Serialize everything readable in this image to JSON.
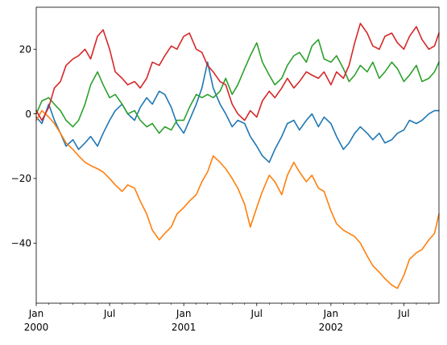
{
  "chart_data": {
    "type": "line",
    "title": "",
    "xlabel": "",
    "ylabel": "",
    "x_range": [
      "2000-01-01",
      "2002-09-26"
    ],
    "ylim": [
      -58.6,
      33.0
    ],
    "grid": false,
    "legend": "none",
    "x_ticks": [
      {
        "date": "2000-01-01",
        "line1": "Jan",
        "line2": "2000"
      },
      {
        "date": "2000-07-01",
        "line1": "Jul",
        "line2": ""
      },
      {
        "date": "2001-01-01",
        "line1": "Jan",
        "line2": "2001"
      },
      {
        "date": "2001-07-01",
        "line1": "Jul",
        "line2": ""
      },
      {
        "date": "2002-01-01",
        "line1": "Jan",
        "line2": "2002"
      },
      {
        "date": "2002-07-01",
        "line1": "Jul",
        "line2": ""
      }
    ],
    "x_minor_ticks": [
      "2000-02-01",
      "2000-03-01",
      "2000-04-01",
      "2000-05-01",
      "2000-06-01",
      "2000-08-01",
      "2000-09-01",
      "2000-10-01",
      "2000-11-01",
      "2000-12-01",
      "2001-02-01",
      "2001-03-01",
      "2001-04-01",
      "2001-05-01",
      "2001-06-01",
      "2001-08-01",
      "2001-09-01",
      "2001-10-01",
      "2001-11-01",
      "2001-12-01",
      "2002-02-01",
      "2002-03-01",
      "2002-04-01",
      "2002-05-01",
      "2002-06-01",
      "2002-08-01",
      "2002-09-01"
    ],
    "y_ticks": [
      {
        "value": 20,
        "label": "20"
      },
      {
        "value": 0,
        "label": "0"
      },
      {
        "value": -20,
        "label": "−20"
      },
      {
        "value": -40,
        "label": "−40"
      }
    ],
    "series": [
      {
        "color": "#1f77b4",
        "points": [
          [
            "2000-01-01",
            -1
          ],
          [
            "2000-01-15",
            -3
          ],
          [
            "2000-02-01",
            3
          ],
          [
            "2000-02-15",
            -2
          ],
          [
            "2000-03-01",
            -6
          ],
          [
            "2000-03-15",
            -10
          ],
          [
            "2000-04-01",
            -8
          ],
          [
            "2000-04-15",
            -11
          ],
          [
            "2000-05-01",
            -9
          ],
          [
            "2000-05-15",
            -7
          ],
          [
            "2000-06-01",
            -10
          ],
          [
            "2000-06-15",
            -6
          ],
          [
            "2000-07-01",
            -2
          ],
          [
            "2000-07-15",
            1
          ],
          [
            "2000-08-01",
            3
          ],
          [
            "2000-08-15",
            0
          ],
          [
            "2000-09-01",
            -2
          ],
          [
            "2000-09-15",
            2
          ],
          [
            "2000-10-01",
            5
          ],
          [
            "2000-10-15",
            3
          ],
          [
            "2000-11-01",
            7
          ],
          [
            "2000-11-15",
            6
          ],
          [
            "2000-12-01",
            2
          ],
          [
            "2000-12-15",
            -3
          ],
          [
            "2001-01-01",
            -6
          ],
          [
            "2001-01-15",
            -2
          ],
          [
            "2001-02-01",
            3
          ],
          [
            "2001-02-15",
            8
          ],
          [
            "2001-03-01",
            16
          ],
          [
            "2001-03-15",
            8
          ],
          [
            "2001-04-01",
            3
          ],
          [
            "2001-04-15",
            0
          ],
          [
            "2001-05-01",
            -4
          ],
          [
            "2001-05-15",
            -2
          ],
          [
            "2001-06-01",
            -3
          ],
          [
            "2001-06-15",
            -7
          ],
          [
            "2001-07-01",
            -10
          ],
          [
            "2001-07-15",
            -13
          ],
          [
            "2001-08-01",
            -15
          ],
          [
            "2001-08-15",
            -11
          ],
          [
            "2001-09-01",
            -7
          ],
          [
            "2001-09-15",
            -3
          ],
          [
            "2001-10-01",
            -2
          ],
          [
            "2001-10-15",
            -5
          ],
          [
            "2001-11-01",
            -2
          ],
          [
            "2001-11-15",
            0
          ],
          [
            "2001-12-01",
            -4
          ],
          [
            "2001-12-15",
            -1
          ],
          [
            "2002-01-01",
            -3
          ],
          [
            "2002-01-15",
            -7
          ],
          [
            "2002-02-01",
            -11
          ],
          [
            "2002-02-15",
            -9
          ],
          [
            "2002-03-01",
            -6
          ],
          [
            "2002-03-15",
            -4
          ],
          [
            "2002-04-01",
            -6
          ],
          [
            "2002-04-15",
            -8
          ],
          [
            "2002-05-01",
            -6
          ],
          [
            "2002-05-15",
            -9
          ],
          [
            "2002-06-01",
            -8
          ],
          [
            "2002-06-15",
            -6
          ],
          [
            "2002-07-01",
            -5
          ],
          [
            "2002-07-15",
            -2
          ],
          [
            "2002-08-01",
            -3
          ],
          [
            "2002-08-15",
            -2
          ],
          [
            "2002-09-01",
            0
          ],
          [
            "2002-09-15",
            1
          ],
          [
            "2002-09-26",
            1
          ]
        ]
      },
      {
        "color": "#ff7f0e",
        "points": [
          [
            "2000-01-01",
            -2
          ],
          [
            "2000-01-15",
            1
          ],
          [
            "2000-02-01",
            -1
          ],
          [
            "2000-02-15",
            -3
          ],
          [
            "2000-03-01",
            -6
          ],
          [
            "2000-03-15",
            -9
          ],
          [
            "2000-04-01",
            -11
          ],
          [
            "2000-04-15",
            -13
          ],
          [
            "2000-05-01",
            -15
          ],
          [
            "2000-05-15",
            -16
          ],
          [
            "2000-06-01",
            -17
          ],
          [
            "2000-06-15",
            -18
          ],
          [
            "2000-07-01",
            -20
          ],
          [
            "2000-07-15",
            -22
          ],
          [
            "2000-08-01",
            -24
          ],
          [
            "2000-08-15",
            -22
          ],
          [
            "2000-09-01",
            -23
          ],
          [
            "2000-09-15",
            -27
          ],
          [
            "2000-10-01",
            -31
          ],
          [
            "2000-10-15",
            -36
          ],
          [
            "2000-11-01",
            -39
          ],
          [
            "2000-11-15",
            -37
          ],
          [
            "2000-12-01",
            -35
          ],
          [
            "2000-12-15",
            -31
          ],
          [
            "2001-01-01",
            -29
          ],
          [
            "2001-01-15",
            -27
          ],
          [
            "2001-02-01",
            -25
          ],
          [
            "2001-02-15",
            -21
          ],
          [
            "2001-03-01",
            -18
          ],
          [
            "2001-03-15",
            -13
          ],
          [
            "2001-04-01",
            -15
          ],
          [
            "2001-04-15",
            -17
          ],
          [
            "2001-05-01",
            -20
          ],
          [
            "2001-05-15",
            -23
          ],
          [
            "2001-06-01",
            -28
          ],
          [
            "2001-06-15",
            -35
          ],
          [
            "2001-07-01",
            -29
          ],
          [
            "2001-07-15",
            -24
          ],
          [
            "2001-08-01",
            -19
          ],
          [
            "2001-08-15",
            -21
          ],
          [
            "2001-09-01",
            -25
          ],
          [
            "2001-09-15",
            -19
          ],
          [
            "2001-10-01",
            -15
          ],
          [
            "2001-10-15",
            -18
          ],
          [
            "2001-11-01",
            -21
          ],
          [
            "2001-11-15",
            -19
          ],
          [
            "2001-12-01",
            -23
          ],
          [
            "2001-12-15",
            -24
          ],
          [
            "2002-01-01",
            -30
          ],
          [
            "2002-01-15",
            -34
          ],
          [
            "2002-02-01",
            -36
          ],
          [
            "2002-02-15",
            -37
          ],
          [
            "2002-03-01",
            -38
          ],
          [
            "2002-03-15",
            -40
          ],
          [
            "2002-04-01",
            -44
          ],
          [
            "2002-04-15",
            -47
          ],
          [
            "2002-05-01",
            -49
          ],
          [
            "2002-05-15",
            -51
          ],
          [
            "2002-06-01",
            -53
          ],
          [
            "2002-06-15",
            -54
          ],
          [
            "2002-07-01",
            -50
          ],
          [
            "2002-07-15",
            -45
          ],
          [
            "2002-08-01",
            -43
          ],
          [
            "2002-08-15",
            -42
          ],
          [
            "2002-09-01",
            -39
          ],
          [
            "2002-09-15",
            -37
          ],
          [
            "2002-09-26",
            -31
          ]
        ]
      },
      {
        "color": "#2ca02c",
        "points": [
          [
            "2000-01-01",
            0
          ],
          [
            "2000-01-15",
            4
          ],
          [
            "2000-02-01",
            5
          ],
          [
            "2000-02-15",
            3
          ],
          [
            "2000-03-01",
            1
          ],
          [
            "2000-03-15",
            -2
          ],
          [
            "2000-04-01",
            -4
          ],
          [
            "2000-04-15",
            -2
          ],
          [
            "2000-05-01",
            3
          ],
          [
            "2000-05-15",
            9
          ],
          [
            "2000-06-01",
            13
          ],
          [
            "2000-06-15",
            9
          ],
          [
            "2000-07-01",
            5
          ],
          [
            "2000-07-15",
            6
          ],
          [
            "2000-08-01",
            3
          ],
          [
            "2000-08-15",
            0
          ],
          [
            "2000-09-01",
            1
          ],
          [
            "2000-09-15",
            -2
          ],
          [
            "2000-10-01",
            -4
          ],
          [
            "2000-10-15",
            -3
          ],
          [
            "2000-11-01",
            -6
          ],
          [
            "2000-11-15",
            -4
          ],
          [
            "2000-12-01",
            -5
          ],
          [
            "2000-12-15",
            -2
          ],
          [
            "2001-01-01",
            -2
          ],
          [
            "2001-01-15",
            2
          ],
          [
            "2001-02-01",
            6
          ],
          [
            "2001-02-15",
            5
          ],
          [
            "2001-03-01",
            6
          ],
          [
            "2001-03-15",
            5
          ],
          [
            "2001-04-01",
            7
          ],
          [
            "2001-04-15",
            11
          ],
          [
            "2001-05-01",
            6
          ],
          [
            "2001-05-15",
            9
          ],
          [
            "2001-06-01",
            14
          ],
          [
            "2001-06-15",
            18
          ],
          [
            "2001-07-01",
            22
          ],
          [
            "2001-07-15",
            16
          ],
          [
            "2001-08-01",
            12
          ],
          [
            "2001-08-15",
            9
          ],
          [
            "2001-09-01",
            11
          ],
          [
            "2001-09-15",
            15
          ],
          [
            "2001-10-01",
            18
          ],
          [
            "2001-10-15",
            19
          ],
          [
            "2001-11-01",
            16
          ],
          [
            "2001-11-15",
            21
          ],
          [
            "2001-12-01",
            23
          ],
          [
            "2001-12-15",
            17
          ],
          [
            "2002-01-01",
            16
          ],
          [
            "2002-01-15",
            18
          ],
          [
            "2002-02-01",
            14
          ],
          [
            "2002-02-15",
            10
          ],
          [
            "2002-03-01",
            12
          ],
          [
            "2002-03-15",
            15
          ],
          [
            "2002-04-01",
            13
          ],
          [
            "2002-04-15",
            16
          ],
          [
            "2002-05-01",
            11
          ],
          [
            "2002-05-15",
            13
          ],
          [
            "2002-06-01",
            16
          ],
          [
            "2002-06-15",
            14
          ],
          [
            "2002-07-01",
            10
          ],
          [
            "2002-07-15",
            12
          ],
          [
            "2002-08-01",
            15
          ],
          [
            "2002-08-15",
            10
          ],
          [
            "2002-09-01",
            11
          ],
          [
            "2002-09-15",
            13
          ],
          [
            "2002-09-26",
            16
          ]
        ]
      },
      {
        "color": "#d62728",
        "points": [
          [
            "2000-01-01",
            1
          ],
          [
            "2000-01-15",
            -2
          ],
          [
            "2000-02-01",
            2
          ],
          [
            "2000-02-15",
            8
          ],
          [
            "2000-03-01",
            10
          ],
          [
            "2000-03-15",
            15
          ],
          [
            "2000-04-01",
            17
          ],
          [
            "2000-04-15",
            18
          ],
          [
            "2000-05-01",
            20
          ],
          [
            "2000-05-15",
            17
          ],
          [
            "2000-06-01",
            24
          ],
          [
            "2000-06-15",
            26
          ],
          [
            "2000-07-01",
            20
          ],
          [
            "2000-07-15",
            13
          ],
          [
            "2000-08-01",
            11
          ],
          [
            "2000-08-15",
            9
          ],
          [
            "2000-09-01",
            10
          ],
          [
            "2000-09-15",
            8
          ],
          [
            "2000-10-01",
            11
          ],
          [
            "2000-10-15",
            16
          ],
          [
            "2000-11-01",
            15
          ],
          [
            "2000-11-15",
            18
          ],
          [
            "2000-12-01",
            21
          ],
          [
            "2000-12-15",
            20
          ],
          [
            "2001-01-01",
            24
          ],
          [
            "2001-01-15",
            25
          ],
          [
            "2001-02-01",
            20
          ],
          [
            "2001-02-15",
            19
          ],
          [
            "2001-03-01",
            15
          ],
          [
            "2001-03-15",
            13
          ],
          [
            "2001-04-01",
            10
          ],
          [
            "2001-04-15",
            9
          ],
          [
            "2001-05-01",
            3
          ],
          [
            "2001-05-15",
            0
          ],
          [
            "2001-06-01",
            -2
          ],
          [
            "2001-06-15",
            1
          ],
          [
            "2001-07-01",
            -1
          ],
          [
            "2001-07-15",
            4
          ],
          [
            "2001-08-01",
            7
          ],
          [
            "2001-08-15",
            5
          ],
          [
            "2001-09-01",
            8
          ],
          [
            "2001-09-15",
            11
          ],
          [
            "2001-10-01",
            8
          ],
          [
            "2001-10-15",
            10
          ],
          [
            "2001-11-01",
            13
          ],
          [
            "2001-11-15",
            12
          ],
          [
            "2001-12-01",
            11
          ],
          [
            "2001-12-15",
            13
          ],
          [
            "2002-01-01",
            9
          ],
          [
            "2002-01-15",
            13
          ],
          [
            "2002-02-01",
            11
          ],
          [
            "2002-02-15",
            15
          ],
          [
            "2002-03-01",
            22
          ],
          [
            "2002-03-15",
            28
          ],
          [
            "2002-04-01",
            25
          ],
          [
            "2002-04-15",
            21
          ],
          [
            "2002-05-01",
            20
          ],
          [
            "2002-05-15",
            24
          ],
          [
            "2002-06-01",
            25
          ],
          [
            "2002-06-15",
            22
          ],
          [
            "2002-07-01",
            20
          ],
          [
            "2002-07-15",
            24
          ],
          [
            "2002-08-01",
            27
          ],
          [
            "2002-08-15",
            23
          ],
          [
            "2002-09-01",
            20
          ],
          [
            "2002-09-15",
            21
          ],
          [
            "2002-09-26",
            25
          ]
        ]
      }
    ]
  }
}
